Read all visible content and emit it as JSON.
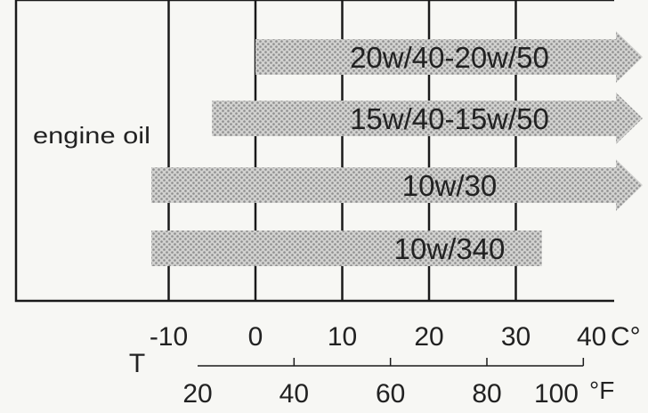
{
  "chart_data": {
    "type": "bar",
    "category_label": "engine oil",
    "x_unit_celsius": "C°",
    "x_unit_fahrenheit": "°F",
    "axis_title": "T",
    "celsius_ticks": [
      {
        "value": -10,
        "label": "-10"
      },
      {
        "value": 0,
        "label": "0"
      },
      {
        "value": 10,
        "label": "10"
      },
      {
        "value": 20,
        "label": "20"
      },
      {
        "value": 30,
        "label": "30"
      },
      {
        "value": 40,
        "label": "40"
      }
    ],
    "fahrenheit_ticks": [
      {
        "value": 20,
        "label": "20"
      },
      {
        "value": 40,
        "label": "40"
      },
      {
        "value": 60,
        "label": "60"
      },
      {
        "value": 80,
        "label": "80"
      },
      {
        "value": 100,
        "label": "100"
      }
    ],
    "xlim_celsius": [
      -20,
      40
    ],
    "ranges": [
      {
        "label": "20w/40-20w/50",
        "from_c": 0,
        "to_c": 40,
        "open_ended_right": true
      },
      {
        "label": "15w/40-15w/50",
        "from_c": -5,
        "to_c": 40,
        "open_ended_right": true
      },
      {
        "label": "10w/30",
        "from_c": -12,
        "to_c": 40,
        "open_ended_right": true
      },
      {
        "label": "10w/340",
        "from_c": -12,
        "to_c": 33,
        "open_ended_right": false
      }
    ],
    "grid": true,
    "colors": {
      "bar": "#b4b4b4",
      "line": "#1a1a1a"
    }
  }
}
